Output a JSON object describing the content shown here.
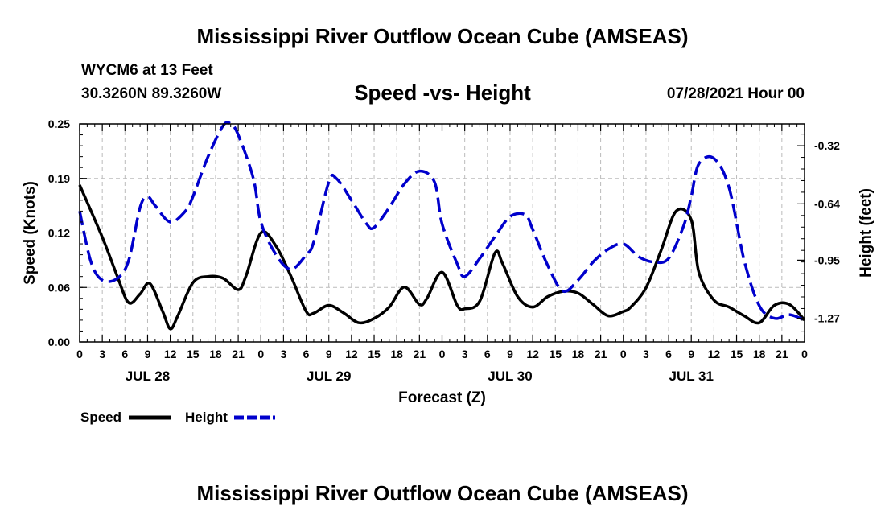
{
  "header": {
    "title": "Mississippi River Outflow Ocean Cube (AMSEAS)",
    "station": "WYCM6 at 13 Feet",
    "coords": "30.3260N  89.3260W",
    "subtitle": "Speed -vs- Height",
    "datetime": "07/28/2021 Hour 00"
  },
  "footer": {
    "title": "Mississippi River Outflow Ocean Cube (AMSEAS)"
  },
  "chart_data": {
    "type": "line",
    "title": "Speed -vs- Height",
    "xlabel": "Forecast (Z)",
    "ylabel": "Speed (Knots)",
    "y2label": "Height (feet)",
    "grid": true,
    "legend_position": "bottom-left",
    "x_range_hours": [
      0,
      96
    ],
    "ylim": [
      0,
      0.25
    ],
    "y2lim": [
      -1.4,
      -0.2
    ],
    "x_ticks": {
      "hours": [
        0,
        3,
        6,
        9,
        12,
        15,
        18,
        21,
        24,
        27,
        30,
        33,
        36,
        39,
        42,
        45,
        48,
        51,
        54,
        57,
        60,
        63,
        66,
        69,
        72,
        75,
        78,
        81,
        84,
        87,
        90,
        93,
        96
      ],
      "labels": [
        "0",
        "3",
        "6",
        "9",
        "12",
        "15",
        "18",
        "21",
        "0",
        "3",
        "6",
        "9",
        "12",
        "15",
        "18",
        "21",
        "0",
        "3",
        "6",
        "9",
        "12",
        "15",
        "18",
        "21",
        "0",
        "3",
        "6",
        "9",
        "12",
        "15",
        "18",
        "21",
        "0"
      ]
    },
    "day_labels": [
      {
        "hour": 9,
        "label": "JUL 28"
      },
      {
        "hour": 33,
        "label": "JUL 29"
      },
      {
        "hour": 57,
        "label": "JUL 30"
      },
      {
        "hour": 81,
        "label": "JUL 31"
      }
    ],
    "y_ticks": [
      {
        "value": 0.0,
        "label": "0.00"
      },
      {
        "value": 0.0625,
        "label": "0.06"
      },
      {
        "value": 0.125,
        "label": "0.12"
      },
      {
        "value": 0.1875,
        "label": "0.19"
      },
      {
        "value": 0.25,
        "label": "0.25"
      }
    ],
    "y2_ticks": [
      {
        "value": -0.32,
        "label": "-0.32"
      },
      {
        "value": -0.64,
        "label": "-0.64"
      },
      {
        "value": -0.95,
        "label": "-0.95"
      },
      {
        "value": -1.27,
        "label": "-1.27"
      }
    ],
    "series": [
      {
        "name": "Speed",
        "axis": "left",
        "color": "#000000",
        "dash": "solid",
        "hours": [
          0,
          3,
          5,
          6.5,
          8,
          9.3,
          11,
          12,
          13,
          15,
          17,
          19,
          21,
          22,
          24,
          26,
          28,
          30,
          31,
          33,
          35,
          37,
          39,
          41,
          43,
          45,
          46,
          48,
          50,
          51,
          53,
          55,
          56,
          58,
          60,
          62,
          64,
          66,
          68,
          70,
          72,
          73,
          75,
          77,
          79,
          81,
          82,
          84,
          86,
          88,
          90,
          92,
          94,
          96
        ],
        "values": [
          0.18,
          0.12,
          0.075,
          0.045,
          0.055,
          0.067,
          0.035,
          0.015,
          0.03,
          0.068,
          0.075,
          0.073,
          0.06,
          0.075,
          0.125,
          0.11,
          0.075,
          0.035,
          0.033,
          0.042,
          0.033,
          0.022,
          0.027,
          0.04,
          0.063,
          0.043,
          0.05,
          0.08,
          0.042,
          0.038,
          0.047,
          0.102,
          0.09,
          0.052,
          0.04,
          0.052,
          0.058,
          0.056,
          0.043,
          0.03,
          0.035,
          0.04,
          0.062,
          0.105,
          0.15,
          0.14,
          0.08,
          0.048,
          0.04,
          0.03,
          0.022,
          0.042,
          0.043,
          0.025
        ]
      },
      {
        "name": "Height",
        "axis": "right",
        "color": "#0000cc",
        "dash": "dashed",
        "hours": [
          0,
          1.5,
          3,
          5,
          6.5,
          8,
          9,
          10,
          12,
          14,
          15,
          17,
          19,
          20,
          21,
          23,
          24,
          26,
          28,
          30,
          31,
          33,
          34,
          36,
          38,
          39,
          41,
          43,
          45,
          47,
          48,
          50,
          51,
          53,
          55,
          57,
          59,
          60,
          62,
          64,
          66,
          68,
          70,
          72,
          74,
          76,
          78,
          80,
          81,
          82,
          84,
          86,
          88,
          90,
          92,
          94,
          96
        ],
        "values": [
          -0.68,
          -0.96,
          -1.06,
          -1.05,
          -0.95,
          -0.66,
          -0.6,
          -0.65,
          -0.74,
          -0.68,
          -0.6,
          -0.38,
          -0.21,
          -0.2,
          -0.26,
          -0.5,
          -0.74,
          -0.92,
          -1.0,
          -0.92,
          -0.85,
          -0.52,
          -0.5,
          -0.62,
          -0.75,
          -0.77,
          -0.66,
          -0.53,
          -0.46,
          -0.52,
          -0.75,
          -0.97,
          -1.04,
          -0.94,
          -0.82,
          -0.71,
          -0.7,
          -0.78,
          -0.98,
          -1.12,
          -1.06,
          -0.96,
          -0.89,
          -0.86,
          -0.93,
          -0.96,
          -0.94,
          -0.76,
          -0.6,
          -0.42,
          -0.39,
          -0.55,
          -0.95,
          -1.2,
          -1.27,
          -1.25,
          -1.28
        ]
      }
    ]
  }
}
